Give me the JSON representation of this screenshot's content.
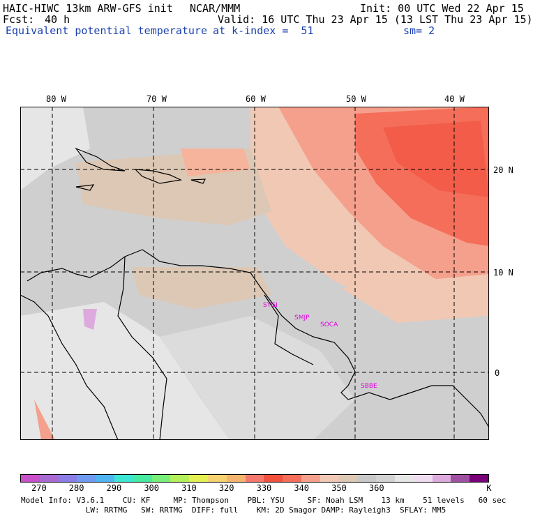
{
  "header": {
    "model_title": "HAIC-HIWC 13km ARW-GFS init",
    "org": "NCAR/MMM",
    "init": "Init: 00 UTC Wed 22 Apr 15",
    "fcst_label": "Fcst:",
    "fcst_value": "40 h",
    "valid": "Valid: 16 UTC Thu 23 Apr 15 (13 LST Thu 23 Apr 15)",
    "field_name": "Equivalent potential temperature",
    "level": "at k-index =  51",
    "smoothing": "sm= 2"
  },
  "axes": {
    "lon_labels": [
      "80 W",
      "70 W",
      "60 W",
      "50 W",
      "40 W"
    ],
    "lat_labels": [
      "20 N",
      "10 N",
      "0"
    ]
  },
  "stations": [
    "SYGI",
    "SMJP",
    "SOCA",
    "SBBE"
  ],
  "colorbar": {
    "colors": [
      "#c850c8",
      "#a96ad2",
      "#8a7de6",
      "#6e9af0",
      "#50b4f0",
      "#3ce6d2",
      "#46eaa0",
      "#78ef78",
      "#b4f05a",
      "#e6f050",
      "#f5d26e",
      "#f5b46e",
      "#f5786e",
      "#f0503c",
      "#f56e5a",
      "#f5a08c",
      "#f0c8b4",
      "#dcc8b4",
      "#c8c8c8",
      "#d2d2d2",
      "#e6e6e6",
      "#f0dcf0",
      "#dcaadc",
      "#a050a0",
      "#780078"
    ],
    "tick_labels": [
      "270",
      "280",
      "290",
      "300",
      "310",
      "320",
      "330",
      "340",
      "350",
      "360",
      "K"
    ]
  },
  "footer": {
    "line1": "Model Info: V3.6.1    CU: KF     MP: Thompson    PBL: YSU     SF: Noah LSM    13 km    51 levels   60 sec",
    "line2": "              LW: RRTMG   SW: RRTMG  DIFF: full    KM: 2D Smagor DAMP: Rayleigh3  SFLAY: MM5"
  }
}
